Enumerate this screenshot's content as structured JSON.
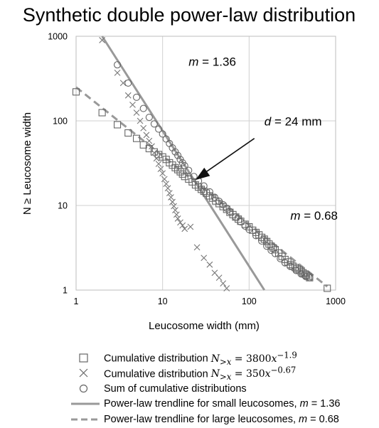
{
  "chart_data": {
    "type": "scatter",
    "title": "Synthetic double power-law distribution",
    "xlabel": "Leucosome width (mm)",
    "ylabel": "N ≥ Leucosome width",
    "x_scale": "log",
    "y_scale": "log",
    "xlim": [
      1,
      1000
    ],
    "ylim": [
      1,
      1000
    ],
    "x_ticks": [
      "1",
      "10",
      "100",
      "1000"
    ],
    "y_ticks": [
      "1",
      "10",
      "100",
      "1000"
    ],
    "grid": true,
    "legend_position": "bottom",
    "series": [
      {
        "name": "Cumulative distribution N>x = 3800x^-1.9",
        "marker": "square",
        "color": "#777777",
        "x": [
          1.0,
          2.0,
          3.0,
          4.0,
          5.0,
          6.0,
          7.0,
          8.0,
          9.0,
          10.0,
          11.0,
          12.0,
          13.0,
          14.0,
          15.0,
          16.0,
          17.0,
          18.0,
          20.0,
          22.0,
          24.0,
          26.0,
          28.0,
          30.0,
          32.0,
          35.0,
          38.0,
          41.0,
          45.0,
          50.0,
          55.0,
          60.0,
          65.0,
          70.0,
          75.0,
          80.0,
          90.0,
          100.0,
          110.0,
          120.0,
          130.0,
          140.0,
          150.0,
          160.0,
          170.0,
          180.0,
          190.0,
          200.0,
          220.0,
          240.0,
          260.0,
          280.0,
          300.0,
          320.0,
          340.0,
          360.0,
          380.0,
          400.0,
          420.0,
          440.0,
          460.0,
          480.0,
          500.0,
          800.0
        ],
        "y": [
          220.0,
          125.0,
          90.0,
          72.0,
          62.0,
          52.0,
          47.0,
          43.0,
          40.0,
          37.5,
          35.0,
          32.0,
          30.0,
          28.0,
          26.5,
          25.0,
          23.5,
          22.0,
          20.5,
          19.0,
          17.5,
          16.5,
          15.5,
          14.7,
          14.0,
          13.0,
          12.2,
          11.3,
          10.5,
          9.7,
          9.0,
          8.3,
          7.8,
          7.3,
          6.9,
          6.5,
          6.0,
          5.6,
          5.1,
          4.8,
          4.5,
          4.2,
          4.0,
          3.75,
          3.5,
          3.3,
          3.15,
          3.0,
          2.75,
          2.5,
          2.3,
          2.15,
          2.0,
          1.92,
          1.85,
          1.78,
          1.72,
          1.66,
          1.6,
          1.55,
          1.5,
          1.45,
          1.4,
          1.05
        ]
      },
      {
        "name": "Cumulative distribution N>x = 350x^-0.67",
        "marker": "x",
        "color": "#777777",
        "x": [
          2.0,
          3.0,
          3.5,
          4.0,
          4.5,
          5.0,
          5.5,
          6.0,
          6.5,
          7.0,
          7.5,
          8.0,
          8.5,
          9.0,
          9.5,
          10.0,
          10.5,
          11.0,
          11.5,
          12.0,
          12.5,
          13.0,
          13.5,
          14.0,
          14.5,
          15.0,
          16.0,
          17.0,
          18.0,
          21.0,
          25.0,
          30.0,
          35.0,
          40.0,
          45.0,
          50.0,
          55.0
        ],
        "y": [
          900.0,
          370.0,
          280.0,
          200.0,
          155.0,
          125.0,
          100.0,
          82.0,
          68.0,
          58.0,
          50.0,
          42.0,
          36.0,
          31.0,
          27.0,
          24.0,
          20.5,
          18.0,
          16.0,
          14.0,
          12.5,
          11.0,
          9.8,
          8.8,
          7.8,
          7.0,
          6.3,
          5.8,
          5.3,
          5.6,
          3.2,
          2.4,
          2.0,
          1.6,
          1.4,
          1.2,
          1.05
        ]
      },
      {
        "name": "Sum of cumulative distributions",
        "marker": "circle",
        "color": "#777777",
        "x": [
          3.0,
          4.0,
          5.0,
          6.0,
          7.0,
          8.0,
          9.0,
          10.0,
          11.0,
          12.0,
          13.0,
          14.0,
          15.0,
          16.0,
          17.0,
          18.0,
          20.0,
          23.0,
          26.0,
          30.0,
          35.0,
          40.0,
          45.0,
          50.0,
          55.0,
          60.0,
          70.0,
          80.0,
          90.0,
          100.0,
          120.0,
          140.0,
          160.0,
          180.0,
          200.0,
          230.0,
          260.0,
          300.0,
          350.0,
          400.0,
          450.0,
          500.0
        ],
        "y": [
          460.0,
          280.0,
          190.0,
          140.0,
          110.0,
          92.0,
          80.0,
          70.0,
          61.0,
          54.0,
          48.0,
          43.0,
          39.0,
          35.0,
          32.0,
          29.5,
          26.0,
          22.0,
          19.5,
          17.0,
          14.5,
          12.5,
          11.2,
          10.2,
          9.3,
          8.5,
          7.3,
          6.4,
          5.7,
          5.2,
          4.4,
          3.8,
          3.3,
          2.95,
          2.7,
          2.35,
          2.1,
          1.9,
          1.7,
          1.55,
          1.45,
          1.4
        ]
      },
      {
        "name": "Power-law trendline for small leucosomes, m = 1.36",
        "marker": "solid-line",
        "color": "#999999",
        "x": [
          2.0,
          150.0
        ],
        "y": [
          1000.0,
          1.0
        ]
      },
      {
        "name": "Power-law trendline for large leucosomes, m = 0.68",
        "marker": "dashed-line",
        "color": "#999999",
        "x": [
          1.0,
          800.0
        ],
        "y": [
          250.0,
          1.1
        ]
      }
    ],
    "annotations": [
      {
        "label": "m = 1.36",
        "x": 20,
        "y": 450
      },
      {
        "label": "d = 24 mm",
        "x": 150,
        "y": 88
      },
      {
        "label": "m = 0.68",
        "x": 300,
        "y": 6.8
      }
    ],
    "arrow": {
      "from": [
        115,
        62
      ],
      "to": [
        24,
        20
      ]
    }
  },
  "legend": {
    "items": [
      {
        "prefix": "Cumulative distribution ",
        "lhs": "N",
        "sub": ">x",
        "rhs": " = 3800",
        "var": "x",
        "sup": "−1.9",
        "suffix": ""
      },
      {
        "prefix": "Cumulative distribution ",
        "lhs": "N",
        "sub": ">x",
        "rhs": " = 350",
        "var": "x",
        "sup": "−0.67",
        "suffix": ""
      },
      {
        "prefix": "Sum of cumulative distributions",
        "lhs": "",
        "sub": "",
        "rhs": "",
        "var": "",
        "sup": "",
        "suffix": ""
      },
      {
        "prefix": "Power-law trendline for small leucosomes, ",
        "italic": "m",
        "suffix": " = 1.36"
      },
      {
        "prefix": "Power-law trendline for large leucosomes, ",
        "italic": "m",
        "suffix": " = 0.68"
      }
    ]
  }
}
